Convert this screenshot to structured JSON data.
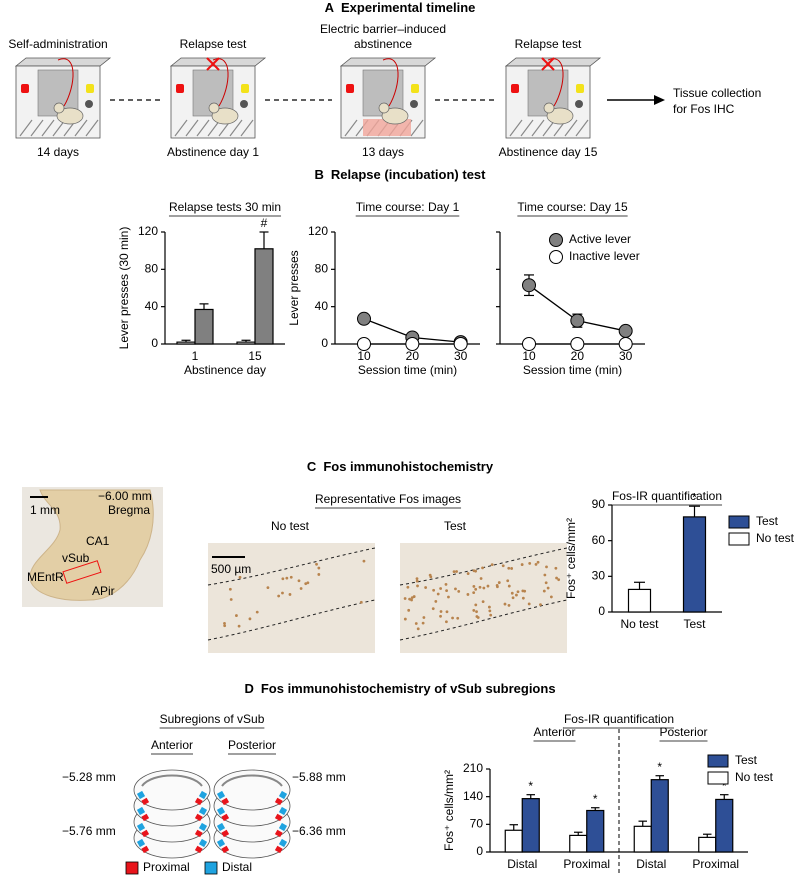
{
  "panel_a": {
    "letter": "A",
    "title": "Experimental timeline",
    "stages": [
      {
        "label": [
          "Self-administration"
        ],
        "duration": "14 days"
      },
      {
        "label": [
          "Relapse test"
        ],
        "color": "#d7191c",
        "duration": "Abstinence day 1"
      },
      {
        "label": [
          "Electric barrier–induced",
          "abstinence"
        ],
        "duration": "13 days"
      },
      {
        "label": [
          "Relapse test"
        ],
        "color": "#d7191c",
        "duration": "Abstinence day 15"
      }
    ],
    "end": [
      "Tissue collection",
      "for Fos IHC"
    ]
  },
  "panel_b": {
    "letter": "B",
    "title": "Relapse (incubation) test"
  },
  "panel_c": {
    "letter": "C",
    "title": "Fos immunohistochemistry",
    "section_labels": {
      "scale": "1 mm",
      "level": "−6.00 mm",
      "reference": "Bregma",
      "ca1": "CA1",
      "vsub": "vSub",
      "mentr": "MEntR",
      "apir": "APir"
    },
    "images_title": "Representative Fos images",
    "image_titles": [
      "No test",
      "Test"
    ],
    "image_scale": "500 µm"
  },
  "panel_d": {
    "letter": "D",
    "title": "Fos immunohistochemistry of vSub subregions",
    "atlas_title": "Subregions of vSub",
    "atlas_columns": [
      "Anterior",
      "Posterior"
    ],
    "levels": [
      "−5.28 mm",
      "−5.76 mm",
      "−5.88 mm",
      "−6.36 mm"
    ],
    "legend": [
      {
        "name": "Proximal",
        "color": "#e8141b"
      },
      {
        "name": "Distal",
        "color": "#1fa3e0"
      }
    ]
  },
  "chart_data": [
    {
      "type": "bar",
      "title": "Relapse tests 30 min",
      "y_label": "Lever presses (30 min)",
      "x_label": "Abstinence day",
      "categories": [
        "1",
        "15"
      ],
      "series": [
        {
          "color": "#808080",
          "values": [
            37,
            102
          ],
          "errors": [
            6,
            18
          ],
          "significance": [
            null,
            "#"
          ]
        },
        {
          "color": "#ffffff",
          "values": [
            2,
            2
          ],
          "errors": [
            2,
            2
          ]
        }
      ],
      "ylim": [
        0,
        120
      ],
      "yticks": [
        0,
        40,
        80,
        120
      ]
    },
    {
      "type": "line",
      "title": "Time course: Day 1",
      "y_label": "Lever presses",
      "x_label": "Session time (min)",
      "x": [
        10,
        20,
        30
      ],
      "series": [
        {
          "color": "#808080",
          "values": [
            27,
            7,
            2
          ],
          "errors": [
            3,
            3,
            2
          ]
        },
        {
          "color": "#ffffff",
          "values": [
            0,
            0,
            0
          ]
        }
      ],
      "xlim": [
        4,
        34
      ],
      "xticks": [
        10,
        20,
        30
      ],
      "ylim": [
        0,
        120
      ],
      "yticks": [
        0,
        40,
        80,
        120
      ]
    },
    {
      "type": "line",
      "title": "Time course: Day 15",
      "x_label": "Session time (min)",
      "x": [
        10,
        20,
        30
      ],
      "series": [
        {
          "name": "Active lever",
          "color": "#808080",
          "values": [
            63,
            25,
            14
          ],
          "errors": [
            11,
            7,
            3
          ]
        },
        {
          "name": "Inactive lever",
          "color": "#ffffff",
          "values": [
            0,
            0,
            0
          ]
        }
      ],
      "xlim": [
        4,
        34
      ],
      "xticks": [
        10,
        20,
        30
      ],
      "ylim": [
        0,
        120
      ],
      "yticks": [
        0,
        40,
        80,
        120
      ],
      "ytick_labels": false,
      "legend": "upper right"
    },
    {
      "type": "bar",
      "title": "Fos-IR quantification",
      "y_label": "Fos⁺ cells/mm²",
      "categories": [
        "No test",
        "Test"
      ],
      "series": [
        {
          "name": "Test",
          "color": "#2e4f96",
          "values": [
            null,
            80
          ],
          "errors": [
            null,
            9
          ],
          "significance": [
            null,
            "*"
          ]
        },
        {
          "name": "No test",
          "color": "#ffffff",
          "values": [
            19,
            null
          ],
          "errors": [
            6,
            null
          ]
        }
      ],
      "ylim": [
        0,
        90
      ],
      "yticks": [
        0,
        30,
        60,
        90
      ],
      "legend": "upper right"
    },
    {
      "type": "bar",
      "title": "Fos-IR quantification",
      "y_label": "Fos⁺ cells/mm²",
      "groups": [
        "Anterior",
        "Posterior"
      ],
      "categories": [
        "Distal",
        "Proximal",
        "Distal",
        "Proximal"
      ],
      "series": [
        {
          "name": "Test",
          "color": "#2e4f96",
          "values": [
            135,
            105,
            183,
            133
          ],
          "errors": [
            10,
            7,
            10,
            12
          ],
          "significance": [
            "*",
            "*",
            "*",
            "*"
          ]
        },
        {
          "name": "No test",
          "color": "#ffffff",
          "values": [
            55,
            42,
            65,
            37
          ],
          "errors": [
            14,
            8,
            13,
            8
          ]
        }
      ],
      "ylim": [
        0,
        210
      ],
      "yticks": [
        0,
        70,
        140,
        210
      ],
      "legend": "upper right"
    }
  ]
}
